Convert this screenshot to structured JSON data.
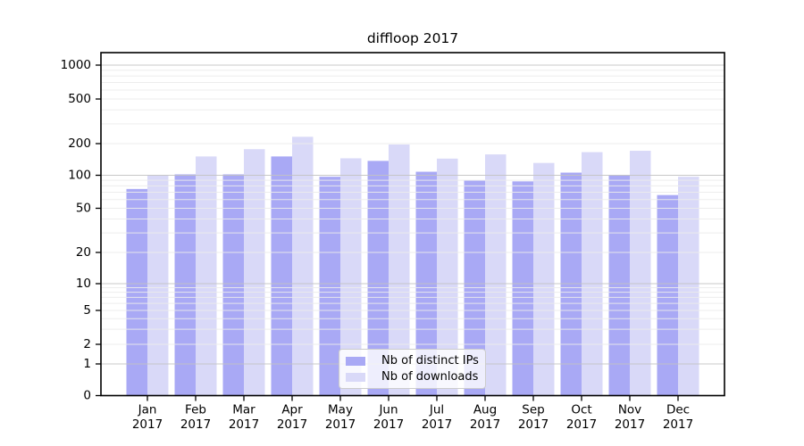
{
  "chart_data": {
    "type": "bar",
    "title": "diffloop 2017",
    "categories": [
      "Jan 2017",
      "Feb 2017",
      "Mar 2017",
      "Apr 2017",
      "May 2017",
      "Jun 2017",
      "Jul 2017",
      "Aug 2017",
      "Sep 2017",
      "Oct 2017",
      "Nov 2017",
      "Dec 2017"
    ],
    "x_tick_month": [
      "Jan",
      "Feb",
      "Mar",
      "Apr",
      "May",
      "Jun",
      "Jul",
      "Aug",
      "Sep",
      "Oct",
      "Nov",
      "Dec"
    ],
    "x_tick_year": "2017",
    "series": [
      {
        "name": "Nb of distinct IPs",
        "color": "#a9a9f5",
        "values": [
          75,
          102,
          102,
          151,
          97,
          137,
          108,
          90,
          88,
          106,
          100,
          66
        ]
      },
      {
        "name": "Nb of downloads",
        "color": "#d9d9f8",
        "values": [
          100,
          151,
          177,
          230,
          145,
          196,
          144,
          158,
          131,
          166,
          171,
          97
        ]
      }
    ],
    "y_axis_ticks": [
      0,
      1,
      2,
      5,
      10,
      20,
      50,
      100,
      200,
      500,
      1000
    ],
    "y_scale": "log-like",
    "ylim": [
      0,
      1000
    ],
    "xlabel": "",
    "ylabel": "",
    "grid": "on",
    "legend_position": "lower center"
  },
  "colors": {
    "background": "#ffffff",
    "axis_frame": "#000000",
    "grid_major": "#c2c2c2",
    "grid_minor": "#ebebeb",
    "text": "#000000",
    "legend_border": "#cccccc"
  }
}
